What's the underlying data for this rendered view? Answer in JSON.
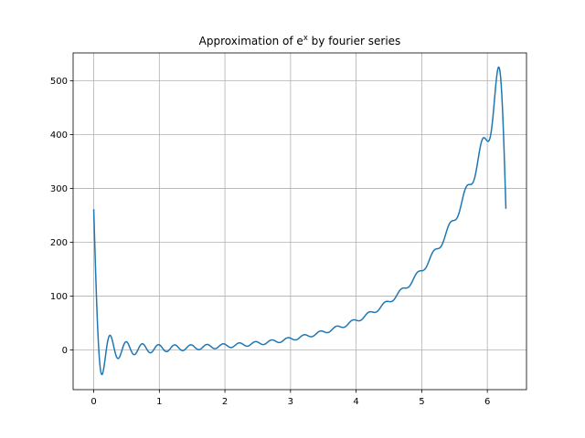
{
  "chart_data": {
    "type": "line",
    "title": "Approximation of e",
    "title_superscript": "x",
    "title_suffix": " by fourier series",
    "xlabel": "",
    "ylabel": "",
    "xlim": [
      -0.314,
      6.597
    ],
    "ylim": [
      -74,
      552
    ],
    "x_ticks": [
      0,
      1,
      2,
      3,
      4,
      5,
      6
    ],
    "x_tick_labels": [
      "0",
      "1",
      "2",
      "3",
      "4",
      "5",
      "6"
    ],
    "y_ticks": [
      0,
      100,
      200,
      300,
      400,
      500
    ],
    "y_tick_labels": [
      "0",
      "100",
      "200",
      "300",
      "400",
      "500"
    ],
    "grid": true,
    "series": [
      {
        "color": "#1f77b4",
        "function": "fourier partial sum of e^x on [0, 2π]",
        "harmonics": 25,
        "x_range": [
          0,
          6.283
        ]
      }
    ]
  }
}
